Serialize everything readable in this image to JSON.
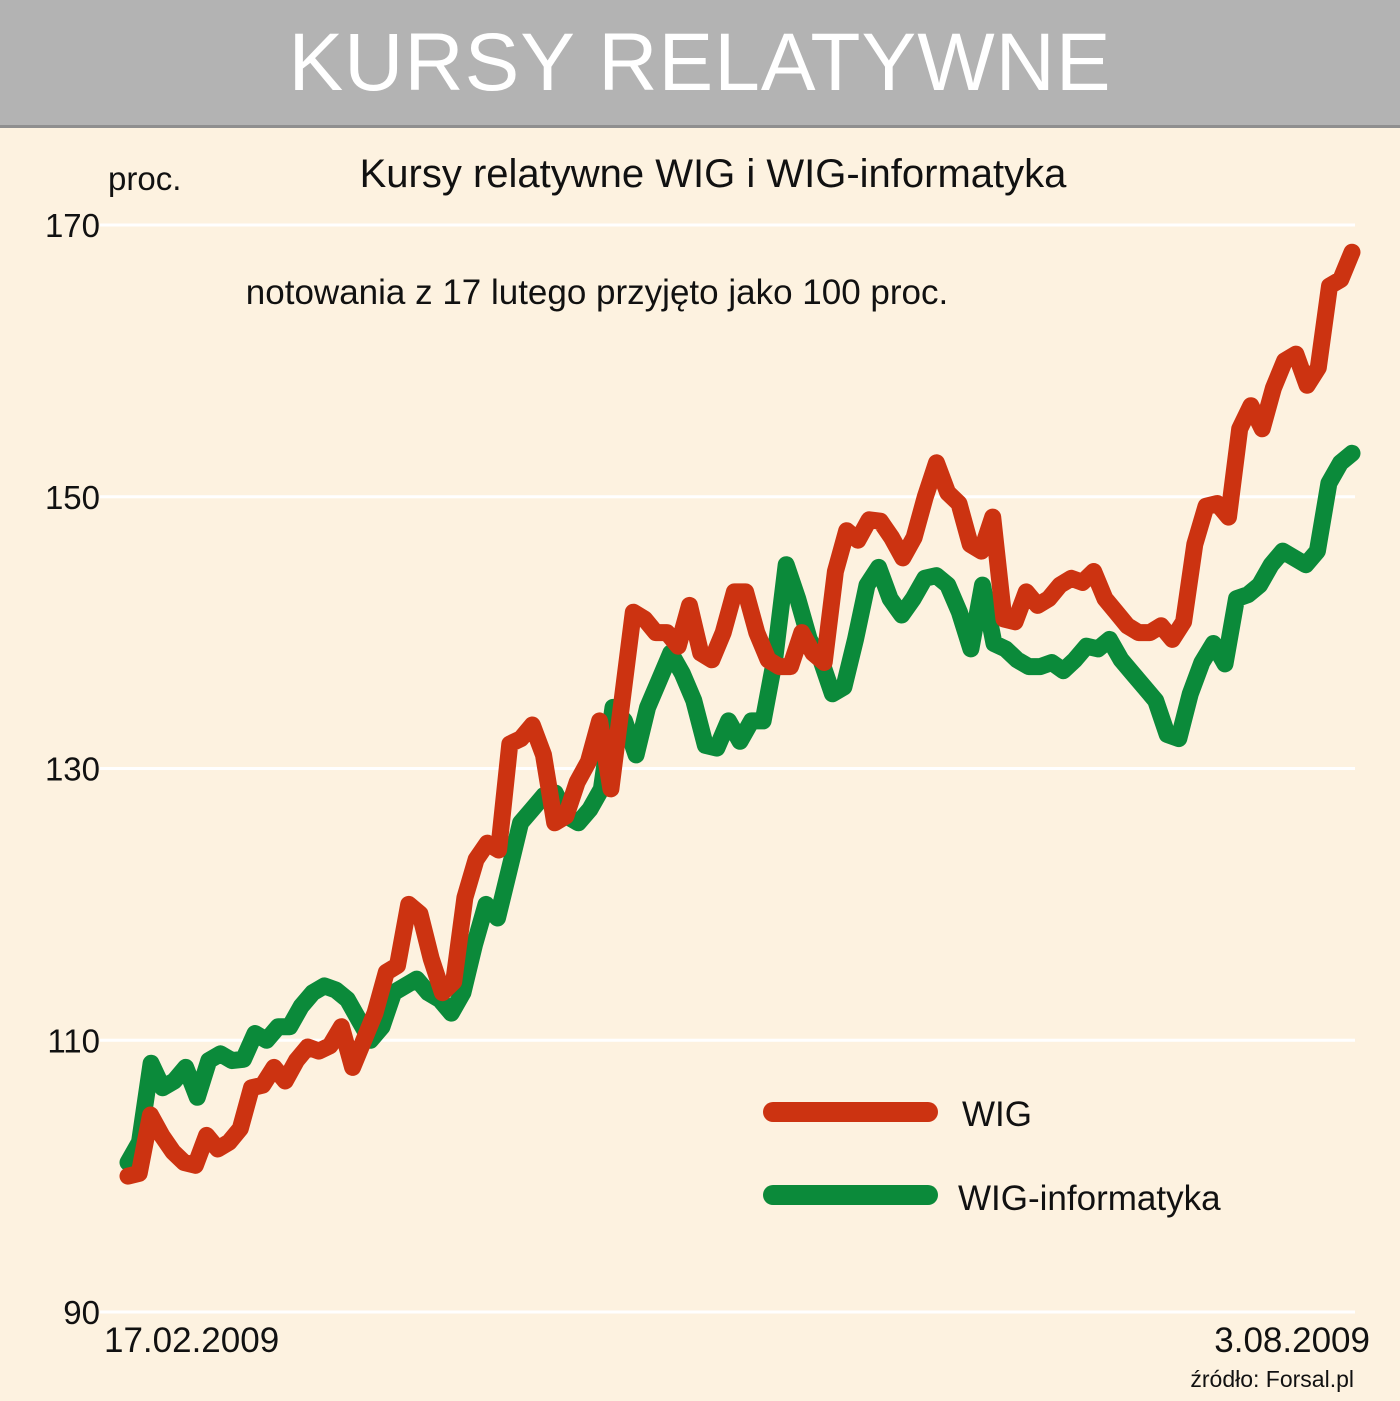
{
  "banner": {
    "title": "KURSY RELATYWNE"
  },
  "source": "źródło: Forsal.pl",
  "colors": {
    "background": "#fdf2e0",
    "banner": "#b3b3b3",
    "wig": "#cc3311",
    "wig_informatyka": "#0b8a3a",
    "grid": "#ffffff"
  },
  "chart_data": {
    "type": "line",
    "title": "Kursy relatywne WIG i WIG-informatyka",
    "subtitle": "notowania z 17 lutego przyjęto jako 100 proc.",
    "ylabel": "proc.",
    "ylim": [
      90,
      170
    ],
    "yticks": [
      90,
      110,
      130,
      150,
      170
    ],
    "xlabel_start": "17.02.2009",
    "xlabel_end": "3.08.2009",
    "grid": true,
    "legend_position": "bottom-right",
    "series": [
      {
        "name": "WIG",
        "color": "#cc3311",
        "values": [
          100,
          100.2,
          104.5,
          103,
          101.8,
          101,
          100.8,
          103,
          102,
          102.5,
          103.5,
          106.5,
          106.7,
          108,
          107,
          108.5,
          109.5,
          109.2,
          109.6,
          111,
          108,
          110,
          112,
          115,
          115.5,
          120,
          119.3,
          116,
          113.5,
          114.3,
          120.5,
          123.3,
          124.5,
          124,
          131.8,
          132.2,
          133.2,
          131,
          126,
          126.5,
          129,
          130.5,
          133.5,
          128.5,
          135,
          141.5,
          141,
          140,
          140,
          139,
          142,
          138.5,
          138,
          140,
          143,
          143,
          140,
          138,
          137.5,
          137.5,
          140,
          138.5,
          137.8,
          144.5,
          147.5,
          146.8,
          148.3,
          148.2,
          147,
          145.5,
          147,
          150,
          152.5,
          150.3,
          149.5,
          146.5,
          146,
          148.5,
          141,
          140.8,
          143,
          142,
          142.5,
          143.5,
          144,
          143.7,
          144.5,
          142.5,
          141.5,
          140.5,
          140,
          140,
          140.5,
          139.5,
          140.8,
          146.5,
          149.3,
          149.5,
          148.5,
          155,
          156.7,
          155,
          158,
          160,
          160.5,
          158.2,
          159.5,
          165.5,
          166,
          168
        ]
      },
      {
        "name": "WIG-informatyka",
        "color": "#0b8a3a",
        "values": [
          101,
          102.5,
          108.3,
          106.5,
          107,
          108,
          105.8,
          108.5,
          109,
          108.5,
          108.6,
          110.5,
          110,
          111,
          111,
          112.5,
          113.5,
          114,
          113.7,
          113,
          111.5,
          110,
          111,
          113.5,
          114,
          114.5,
          113.5,
          113,
          112,
          113.5,
          117,
          120,
          119,
          122.5,
          126,
          127,
          128,
          128.2,
          126.5,
          126,
          127,
          128.5,
          134.5,
          133.5,
          131,
          134.5,
          136.5,
          138.5,
          137,
          135,
          131.7,
          131.5,
          133.5,
          132,
          133.5,
          133.5,
          138,
          145,
          142.5,
          139.5,
          138,
          135.5,
          136,
          139.5,
          143.5,
          144.8,
          142.5,
          141.3,
          142.5,
          144,
          144.2,
          143.5,
          141.5,
          138.8,
          143.5,
          139.2,
          138.8,
          138,
          137.5,
          137.5,
          137.8,
          137.2,
          138,
          139,
          138.8,
          139.5,
          138,
          137,
          136,
          135,
          132.5,
          132.2,
          135.5,
          137.8,
          139.2,
          137.7,
          142.5,
          142.8,
          143.5,
          145,
          146,
          145.5,
          145,
          146,
          151,
          152.5,
          153.2
        ]
      }
    ]
  }
}
